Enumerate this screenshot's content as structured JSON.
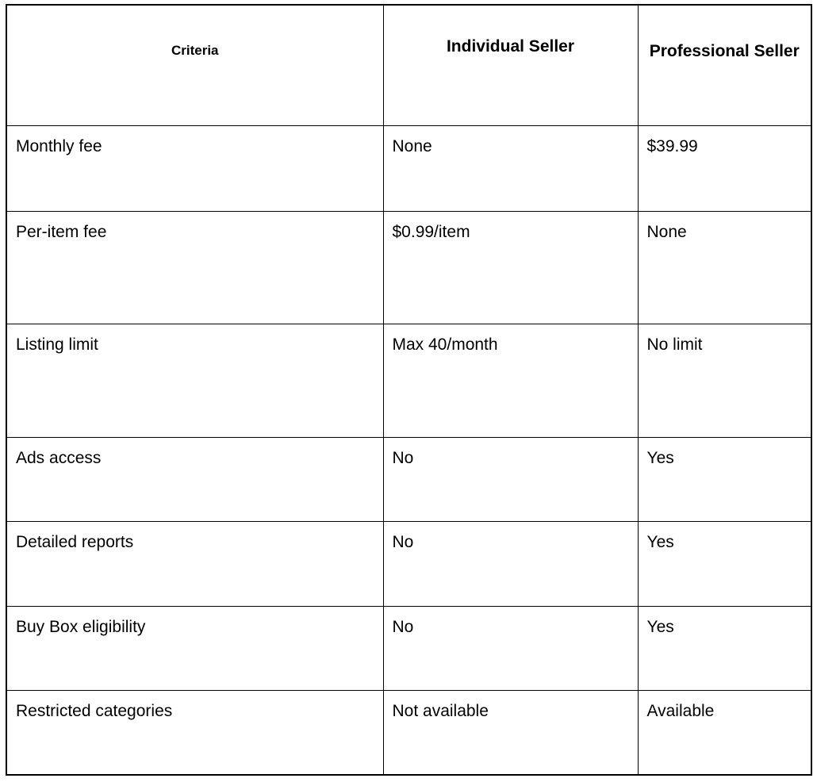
{
  "table": {
    "headers": [
      "Criteria",
      "Individual Seller",
      "Professional Seller"
    ],
    "rows": [
      [
        "Monthly fee",
        "None",
        "$39.99"
      ],
      [
        "Per-item fee",
        "$0.99/item",
        "None"
      ],
      [
        "Listing limit",
        "Max 40/month",
        "No limit"
      ],
      [
        "Ads access",
        "No",
        "Yes"
      ],
      [
        "Detailed reports",
        "No",
        "Yes"
      ],
      [
        "Buy Box eligibility",
        "No",
        "Yes"
      ],
      [
        "Restricted categories",
        "Not available",
        "Available"
      ]
    ]
  }
}
